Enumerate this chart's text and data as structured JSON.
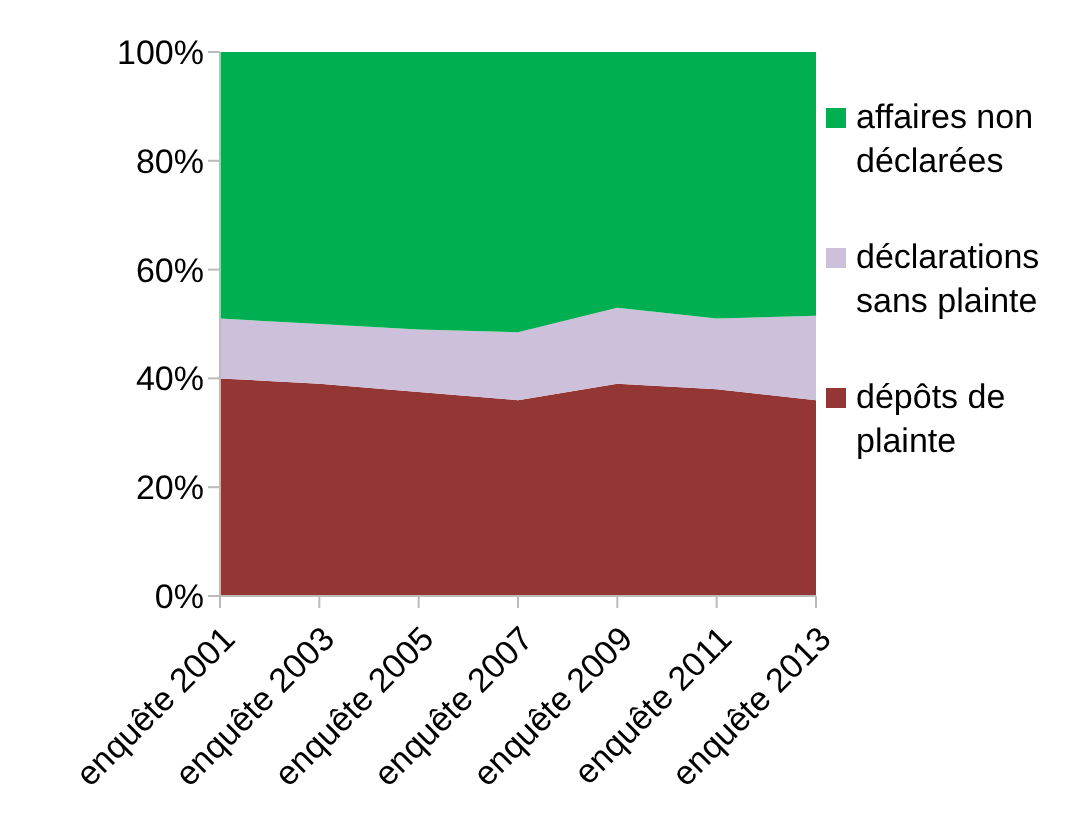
{
  "chart_data": {
    "type": "area",
    "stacked": true,
    "categories": [
      "enquête 2001",
      "enquête 2003",
      "enquête 2005",
      "enquête 2007",
      "enquête 2009",
      "enquête 2011",
      "enquête 2013"
    ],
    "series": [
      {
        "name": "dépôts de plainte",
        "color": "#943634",
        "values": [
          40,
          39,
          37.5,
          36,
          39,
          38,
          36
        ]
      },
      {
        "name": "déclarations sans plainte",
        "color": "#ccc0da",
        "values": [
          11,
          11,
          11.5,
          12.5,
          14,
          13,
          15.5
        ]
      },
      {
        "name": "affaires non déclarées",
        "color": "#00b050",
        "values": [
          49,
          50,
          51,
          51.5,
          47,
          49,
          48.5
        ]
      }
    ],
    "ylim": [
      0,
      100
    ],
    "yticks": [
      {
        "value": 0,
        "label": "0%"
      },
      {
        "value": 20,
        "label": "20%"
      },
      {
        "value": 40,
        "label": "40%"
      },
      {
        "value": 60,
        "label": "60%"
      },
      {
        "value": 80,
        "label": "80%"
      },
      {
        "value": 100,
        "label": "100%"
      }
    ],
    "grid": false,
    "legend": "right"
  }
}
